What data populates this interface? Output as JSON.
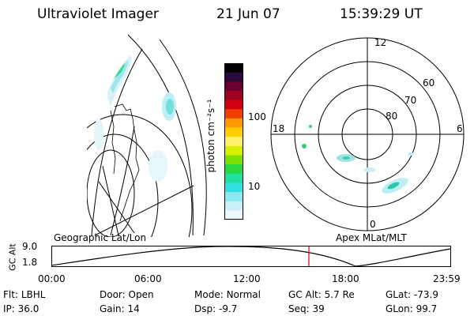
{
  "header": {
    "instrument": "Ultraviolet Imager",
    "date": "21 Jun 07",
    "time": "15:39:29 UT"
  },
  "colorbar": {
    "label": "photon cm⁻²s⁻¹",
    "ticks": [
      "100",
      "10"
    ],
    "colors": [
      "#000000",
      "#2a0a3a",
      "#6a0030",
      "#a00020",
      "#d00010",
      "#f04000",
      "#ff9a00",
      "#ffd000",
      "#fff26a",
      "#d6f000",
      "#7ee000",
      "#28d840",
      "#20e0a0",
      "#30e0e0",
      "#8ae8f0",
      "#c8f0f8",
      "#eef8fc"
    ]
  },
  "polar": {
    "mlt_labels": {
      "top": "12",
      "left": "18",
      "right": "6",
      "bottom": "0"
    },
    "lat_labels": [
      "60",
      "70",
      "80"
    ]
  },
  "alt_plot": {
    "left_title": "Geographic Lat/Lon",
    "right_title": "Apex MLat/MLT",
    "ylabel": "GC Alt",
    "y_ticks": [
      "9.0",
      "1.8"
    ],
    "x_ticks": [
      "00:00",
      "06:00",
      "12:00",
      "18:00",
      "23:59"
    ],
    "cursor_color": "#e00000"
  },
  "footer": {
    "row1": [
      {
        "label": "Flt:",
        "value": "LBHL"
      },
      {
        "label": "Door:",
        "value": "Open"
      },
      {
        "label": "Mode:",
        "value": "Normal"
      },
      {
        "label": "GC Alt:",
        "value": "5.7 Re"
      },
      {
        "label": "GLat:",
        "value": "-73.9"
      }
    ],
    "row2": [
      {
        "label": "IP:",
        "value": "36.0"
      },
      {
        "label": "Gain:",
        "value": "14"
      },
      {
        "label": "Dsp:",
        "value": "-9.7"
      },
      {
        "label": "Seq:",
        "value": "39"
      },
      {
        "label": "GLon:",
        "value": "99.7"
      }
    ]
  }
}
